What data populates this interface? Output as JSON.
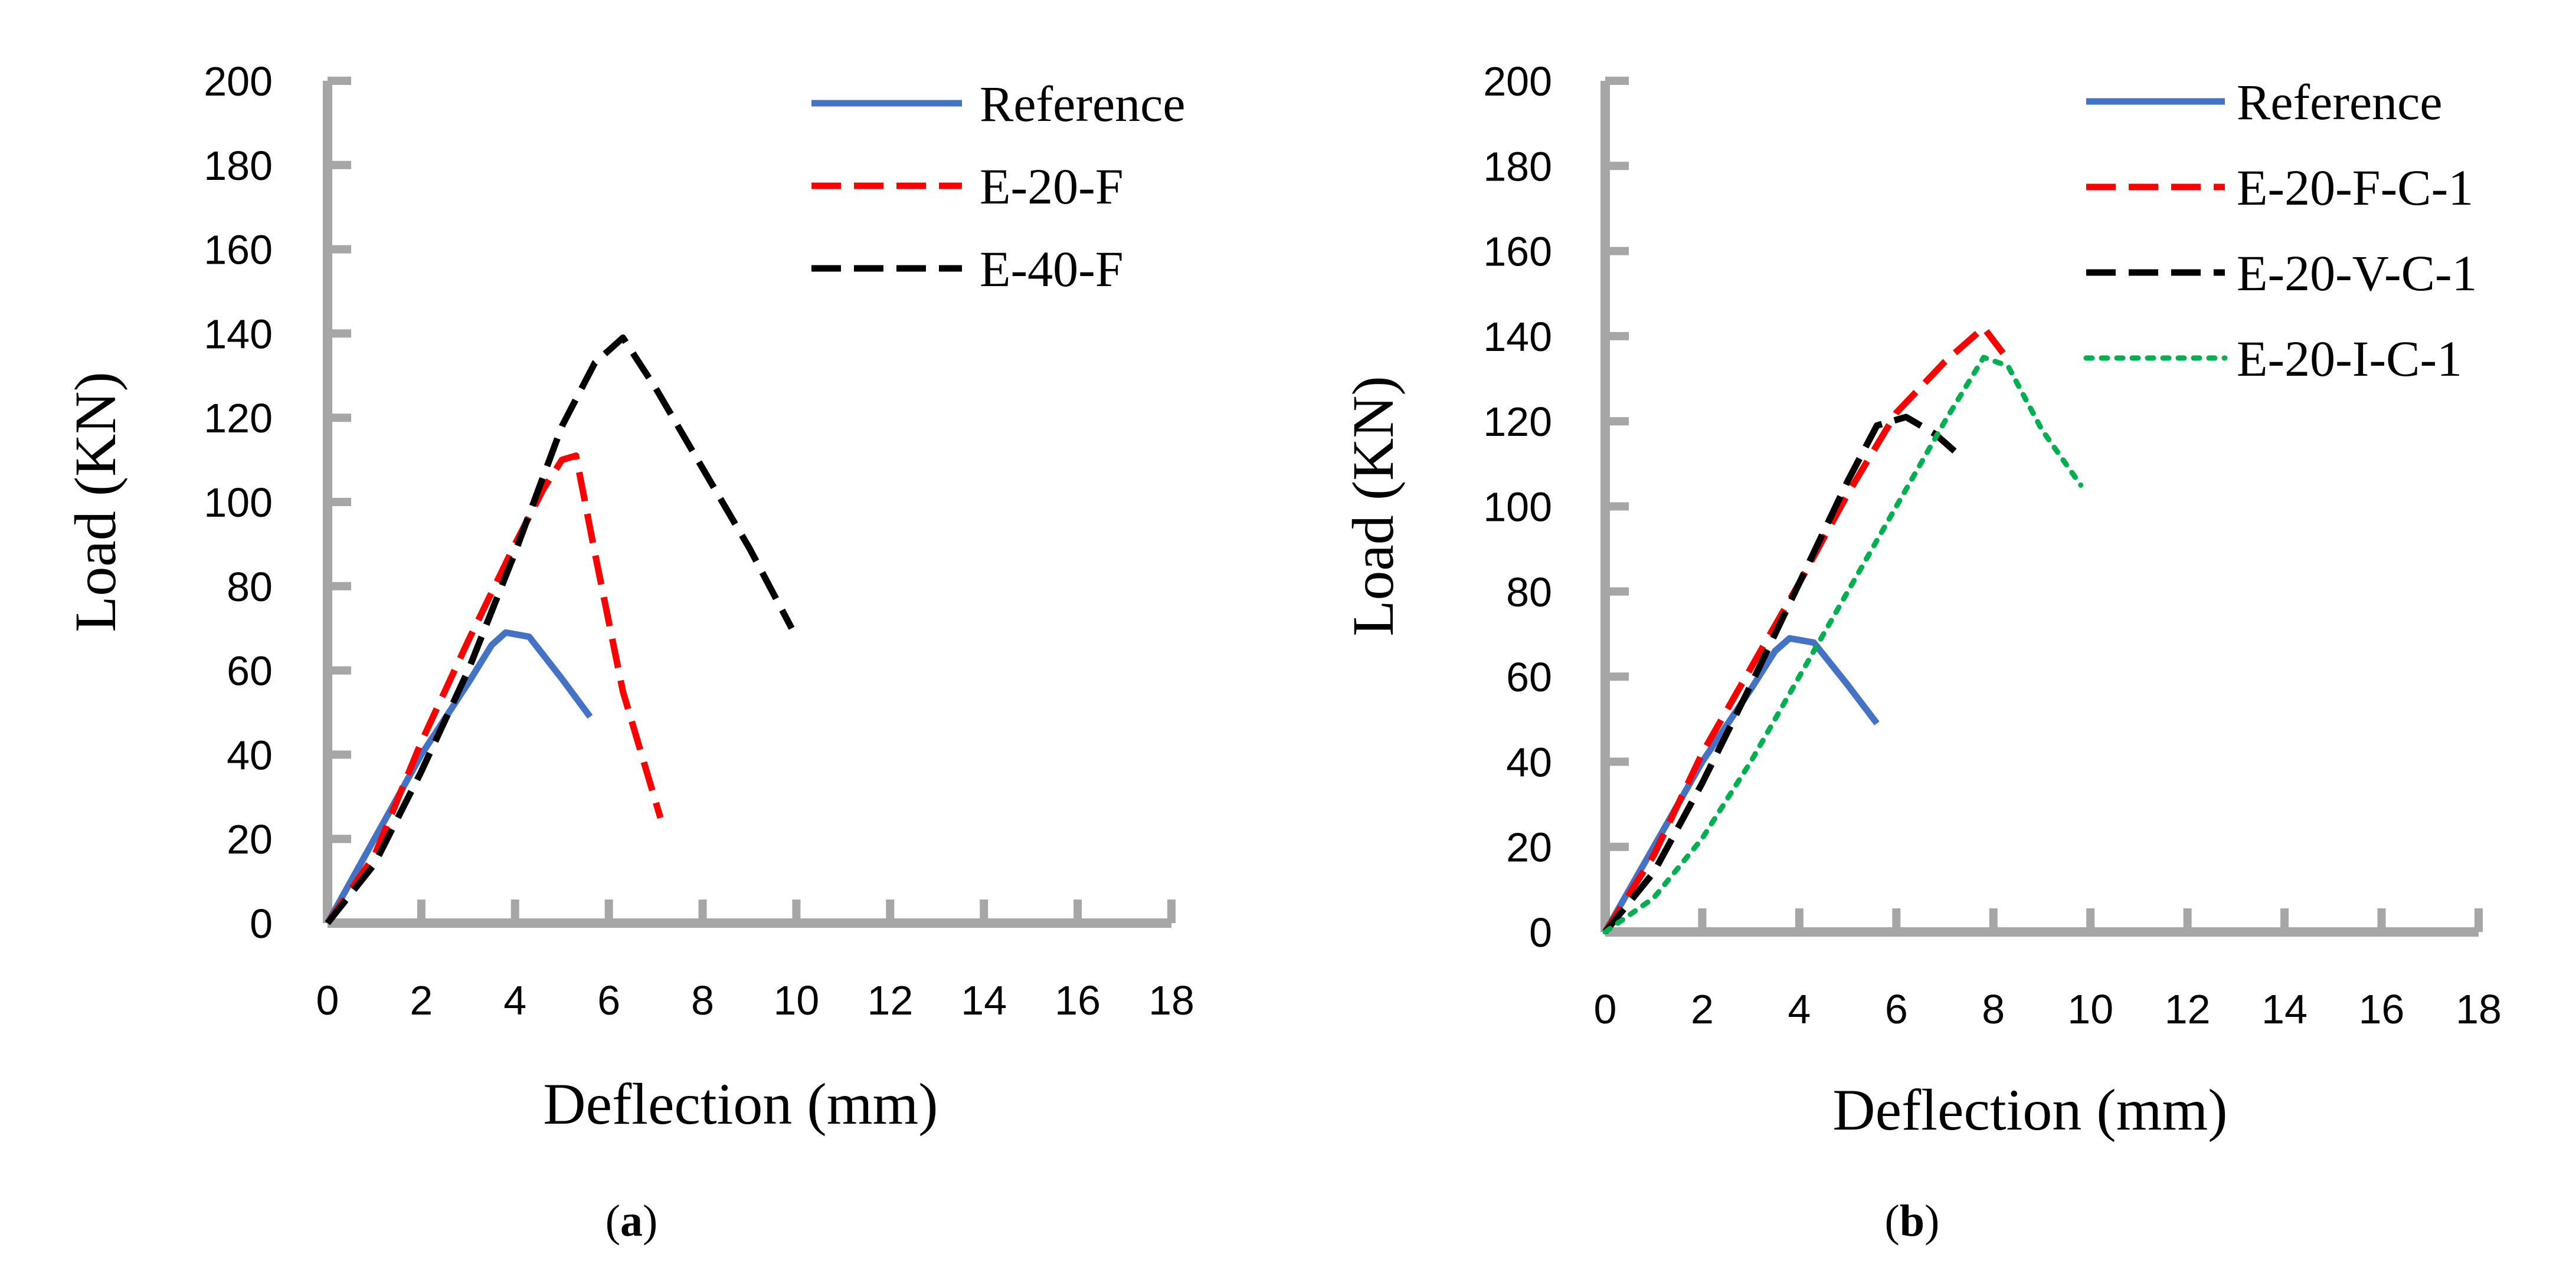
{
  "chart_data": [
    {
      "type": "line",
      "caption": {
        "open": "(",
        "letter": "a",
        "close": ")"
      },
      "xlabel": "Deflection (mm)",
      "ylabel": "Load (KN)",
      "xlim": [
        0,
        18
      ],
      "ylim": [
        0,
        200
      ],
      "xticks": [
        0,
        2,
        4,
        6,
        8,
        10,
        12,
        14,
        16,
        18
      ],
      "yticks": [
        0,
        20,
        40,
        60,
        80,
        100,
        120,
        140,
        160,
        180,
        200
      ],
      "legend_position": "top-right",
      "series": [
        {
          "name": "Reference",
          "color": "#4472C4",
          "style": "solid",
          "x": [
            0,
            1,
            2,
            3,
            3.5,
            3.8,
            4.3,
            5.0,
            5.6
          ],
          "y": [
            0,
            20,
            40,
            57,
            66,
            69,
            68,
            58,
            49
          ]
        },
        {
          "name": "E-20-F",
          "color": "#FF0000",
          "style": "dashed",
          "x": [
            0,
            1,
            2,
            3,
            4,
            4.6,
            5.0,
            5.3,
            5.7,
            6.3,
            7.1
          ],
          "y": [
            0,
            16,
            43,
            67,
            90,
            103,
            110,
            111,
            88,
            55,
            25
          ]
        },
        {
          "name": "E-40-F",
          "color": "#000000",
          "style": "dashed",
          "x": [
            0,
            1,
            2,
            3,
            4,
            5,
            5.7,
            6.3,
            7.0,
            8.0,
            9.0,
            9.9
          ],
          "y": [
            0,
            14,
            36,
            60,
            88,
            118,
            133,
            139,
            127,
            108,
            89,
            70
          ]
        }
      ]
    },
    {
      "type": "line",
      "caption": {
        "open": "(",
        "letter": "b",
        "close": ")"
      },
      "xlabel": "Deflection (mm)",
      "ylabel": "Load (KN)",
      "xlim": [
        0,
        18
      ],
      "ylim": [
        0,
        200
      ],
      "xticks": [
        0,
        2,
        4,
        6,
        8,
        10,
        12,
        14,
        16,
        18
      ],
      "yticks": [
        0,
        20,
        40,
        60,
        80,
        100,
        120,
        140,
        160,
        180,
        200
      ],
      "legend_position": "top-right",
      "series": [
        {
          "name": "Reference",
          "color": "#4472C4",
          "style": "solid",
          "x": [
            0,
            1,
            2,
            3,
            3.5,
            3.8,
            4.3,
            5.0,
            5.6
          ],
          "y": [
            0,
            20,
            40,
            57,
            66,
            69,
            68,
            58,
            49
          ]
        },
        {
          "name": "E-20-F-C-1",
          "color": "#FF0000",
          "style": "dashed",
          "x": [
            0,
            1,
            2,
            3,
            4,
            5,
            6,
            7,
            7.8,
            8.2
          ],
          "y": [
            0,
            18,
            42,
            62,
            82,
            103,
            122,
            134,
            142,
            136
          ]
        },
        {
          "name": "E-20-V-C-1",
          "color": "#000000",
          "style": "dashed",
          "x": [
            0,
            1,
            2,
            3,
            4,
            5,
            5.6,
            6.2,
            6.8,
            7.2
          ],
          "y": [
            0,
            14,
            35,
            58,
            82,
            106,
            119,
            121,
            117,
            113
          ]
        },
        {
          "name": "E-20-I-C-1",
          "color": "#00B050",
          "style": "dotted",
          "x": [
            0,
            1,
            2,
            3,
            4,
            5,
            6,
            7,
            7.8,
            8.3,
            9.0,
            9.8
          ],
          "y": [
            0,
            8,
            22,
            40,
            60,
            80,
            100,
            120,
            135,
            133,
            118,
            105
          ]
        }
      ]
    }
  ]
}
